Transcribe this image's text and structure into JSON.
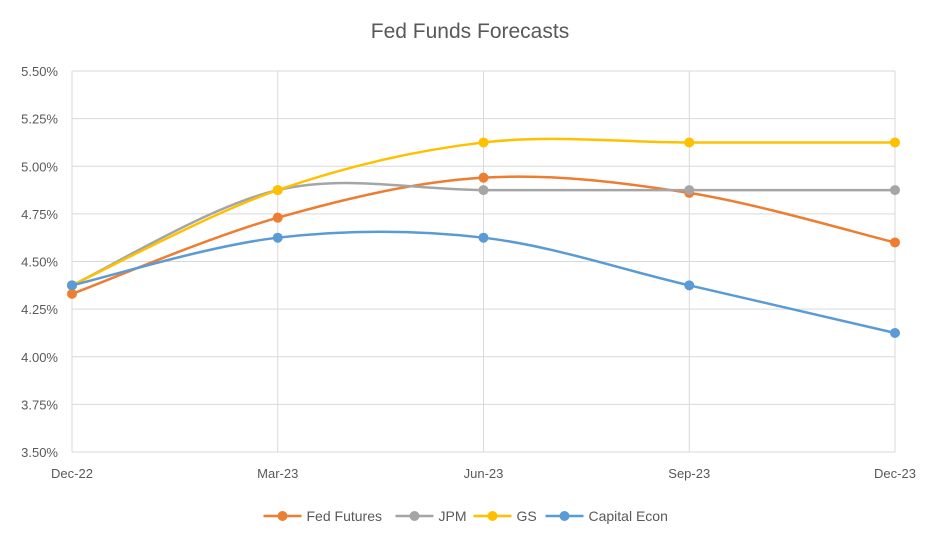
{
  "chart_data": {
    "type": "line",
    "title": "Fed Funds Forecasts",
    "xlabel": "",
    "ylabel": "",
    "categories": [
      "Dec-22",
      "Mar-23",
      "Jun-23",
      "Sep-23",
      "Dec-23"
    ],
    "ylim": [
      3.5,
      5.5
    ],
    "y_ticks": [
      "3.50%",
      "3.75%",
      "4.00%",
      "4.25%",
      "4.50%",
      "4.75%",
      "5.00%",
      "5.25%",
      "5.50%"
    ],
    "grid": true,
    "smooth": true,
    "legend_position": "bottom",
    "series": [
      {
        "name": "Fed Futures",
        "color": "#ED7D31",
        "values": [
          4.33,
          4.73,
          4.94,
          4.86,
          4.6
        ]
      },
      {
        "name": "JPM",
        "color": "#A5A5A5",
        "values": [
          4.375,
          4.875,
          4.875,
          4.875,
          4.875
        ]
      },
      {
        "name": "GS",
        "color": "#FFC000",
        "values": [
          4.375,
          4.875,
          5.125,
          5.125,
          5.125
        ]
      },
      {
        "name": "Capital Econ",
        "color": "#5B9BD5",
        "values": [
          4.375,
          4.625,
          4.625,
          4.375,
          4.125
        ]
      }
    ]
  }
}
